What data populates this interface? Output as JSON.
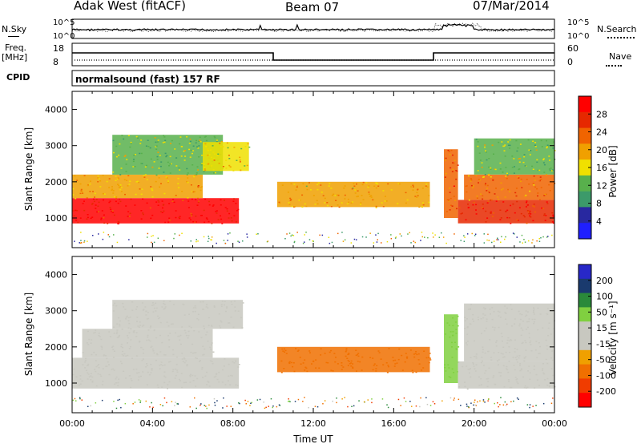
{
  "header": {
    "title": "Adak West (fitACF)",
    "beam": "Beam 07",
    "date": "07/Mar/2014"
  },
  "colors": {
    "power_scale": [
      "#1f1fff",
      "#2828a0",
      "#3c9a6a",
      "#58b04c",
      "#f0e000",
      "#f0a000",
      "#f06400",
      "#e62800",
      "#ff0000"
    ],
    "velocity_scale": [
      "#2828c8",
      "#1a3a6e",
      "#2a8a3a",
      "#80d040",
      "#c8c8c0",
      "#c8c8c0",
      "#f0a000",
      "#f07000",
      "#f03c00",
      "#ff0000"
    ],
    "gray": "#c8c8c0"
  },
  "top_panels": {
    "nsky_label": "N.Sky",
    "nsky_ticks": [
      "10^5",
      "10^0"
    ],
    "nsearch_label": "N.Search",
    "nsearch_ticks": [
      "10^5",
      "10^0"
    ],
    "freq_label": "Freq.",
    "freq_unit": "[MHz]",
    "freq_ticks": [
      "18",
      "8"
    ],
    "nave_label": "Nave",
    "nave_ticks": [
      "60",
      "0"
    ],
    "cpid_label": "CPID",
    "cpid_text": "normalsound (fast) 157 RF"
  },
  "chart_data": [
    {
      "type": "heatmap",
      "panel": "power",
      "ylabel": "Slant Range [km]",
      "x_ticks": [
        "00:00",
        "04:00",
        "08:00",
        "12:00",
        "16:00",
        "20:00",
        "00:00"
      ],
      "y_ticks": [
        "1000",
        "2000",
        "3000",
        "4000"
      ],
      "ylim": [
        180,
        4500
      ],
      "colorbar_label": "Power [dB]",
      "colorbar_ticks": [
        "4",
        "8",
        "12",
        "16",
        "20",
        "24",
        "28"
      ],
      "colorbar_range": [
        0,
        32
      ],
      "regions": [
        {
          "t0": 0.0,
          "t1": 8.3,
          "r0": 850,
          "r1": 1550,
          "value": 29
        },
        {
          "t0": 0.0,
          "t1": 6.5,
          "r0": 1550,
          "r1": 2200,
          "value": 20
        },
        {
          "t0": 2.0,
          "t1": 7.5,
          "r0": 2200,
          "r1": 3300,
          "value": 14
        },
        {
          "t0": 6.5,
          "t1": 8.8,
          "r0": 2300,
          "r1": 3100,
          "value": 17
        },
        {
          "t0": 10.2,
          "t1": 17.8,
          "r0": 1300,
          "r1": 2000,
          "value": 19
        },
        {
          "t0": 18.5,
          "t1": 19.2,
          "r0": 1000,
          "r1": 2900,
          "value": 24
        },
        {
          "t0": 19.2,
          "t1": 24.0,
          "r0": 850,
          "r1": 1500,
          "value": 28
        },
        {
          "t0": 19.5,
          "t1": 24.0,
          "r0": 1500,
          "r1": 2200,
          "value": 22
        },
        {
          "t0": 20.0,
          "t1": 24.0,
          "r0": 2200,
          "r1": 3200,
          "value": 14
        }
      ]
    },
    {
      "type": "heatmap",
      "panel": "velocity",
      "ylabel": "Slant Range [km]",
      "xlabel": "Time UT",
      "x_ticks": [
        "00:00",
        "04:00",
        "08:00",
        "12:00",
        "16:00",
        "20:00",
        "00:00"
      ],
      "y_ticks": [
        "1000",
        "2000",
        "3000",
        "4000"
      ],
      "ylim": [
        180,
        4500
      ],
      "colorbar_label": "Velocity [m s⁻¹]",
      "colorbar_ticks": [
        "200",
        "100",
        "50",
        "15",
        "-15",
        "-50",
        "-100",
        "-200"
      ],
      "regions": [
        {
          "t0": 0.0,
          "t1": 8.3,
          "r0": 850,
          "r1": 1700,
          "value": 0
        },
        {
          "t0": 0.5,
          "t1": 7.0,
          "r0": 1700,
          "r1": 2500,
          "value": 0
        },
        {
          "t0": 2.0,
          "t1": 8.5,
          "r0": 2500,
          "r1": 3300,
          "value": 0
        },
        {
          "t0": 10.2,
          "t1": 17.8,
          "r0": 1300,
          "r1": 2000,
          "value": -60
        },
        {
          "t0": 18.5,
          "t1": 19.2,
          "r0": 1000,
          "r1": 2900,
          "value": 20
        },
        {
          "t0": 19.2,
          "t1": 24.0,
          "r0": 850,
          "r1": 1600,
          "value": 0
        },
        {
          "t0": 19.5,
          "t1": 24.0,
          "r0": 1600,
          "r1": 3200,
          "value": 0
        }
      ]
    }
  ]
}
